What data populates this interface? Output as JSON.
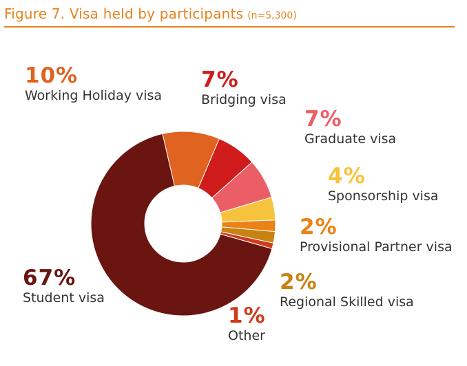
{
  "header": {
    "title": "Figure 7. Visa held by participants",
    "subtitle": "(n=5,300)"
  },
  "chart_data": {
    "type": "pie",
    "title": "Figure 7. Visa held by participants",
    "subtitle": "(n=5,300)",
    "donut": true,
    "slices": [
      {
        "label": "Student visa",
        "percent_label": "67%",
        "value": 67,
        "color": "#6a1510"
      },
      {
        "label": "Working Holiday visa",
        "percent_label": "10%",
        "value": 10,
        "color": "#e06320"
      },
      {
        "label": "Bridging visa",
        "percent_label": "7%",
        "value": 7,
        "color": "#d01c1c"
      },
      {
        "label": "Graduate visa",
        "percent_label": "7%",
        "value": 7,
        "color": "#ec5e66"
      },
      {
        "label": "Sponsorship visa",
        "percent_label": "4%",
        "value": 4,
        "color": "#f8c33c"
      },
      {
        "label": "Provisional Partner visa",
        "percent_label": "2%",
        "value": 2,
        "color": "#ea8216"
      },
      {
        "label": "Regional Skilled visa",
        "percent_label": "2%",
        "value": 2,
        "color": "#c88212"
      },
      {
        "label": "Other",
        "percent_label": "1%",
        "value": 1,
        "color": "#d03a1c"
      }
    ]
  }
}
